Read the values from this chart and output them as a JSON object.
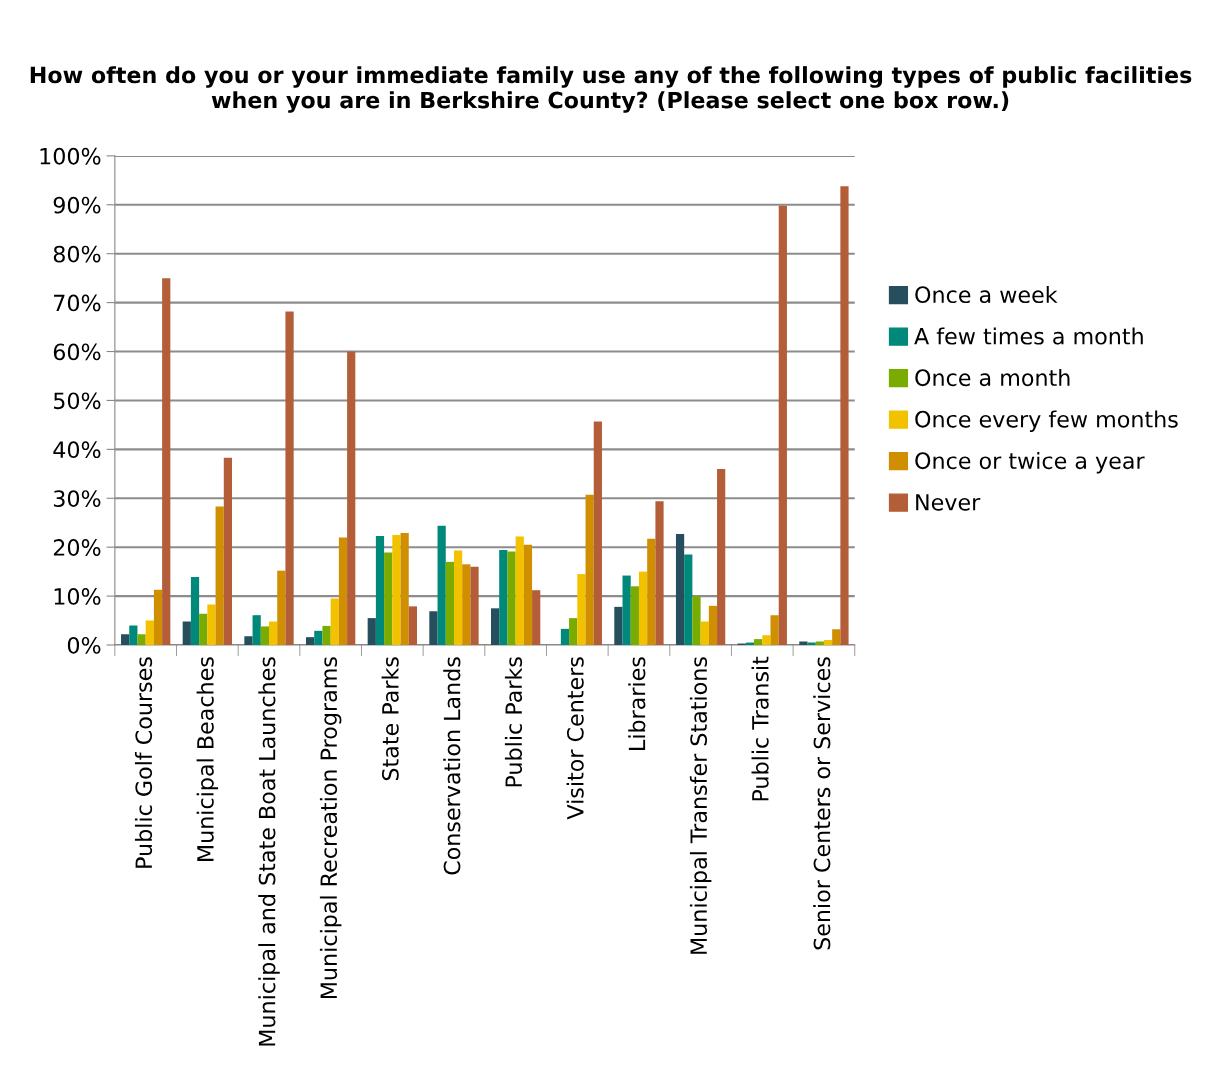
{
  "chart_data": {
    "type": "bar",
    "title": "How often do you or your immediate family use any of the following types of public facilities when you are in Berkshire County? (Please select one box row.)",
    "categories": [
      "Public Golf Courses",
      "Municipal Beaches",
      "Municipal and State Boat Launches",
      "Municipal Recreation Programs",
      "State Parks",
      "Conservation Lands",
      "Public Parks",
      "Visitor Centers",
      "Libraries",
      "Municipal Transfer Stations",
      "Public Transit",
      "Senior Centers or Services"
    ],
    "series": [
      {
        "name": "Once a week",
        "color": "#264e5c",
        "values": [
          2.2,
          4.8,
          1.8,
          1.6,
          5.5,
          6.9,
          7.5,
          0,
          7.8,
          22.7,
          0.3,
          0.7
        ]
      },
      {
        "name": "A few times a month",
        "color": "#00897b",
        "values": [
          4.0,
          13.9,
          6.1,
          2.9,
          22.3,
          24.4,
          19.4,
          3.3,
          14.2,
          18.5,
          0.5,
          0.5
        ]
      },
      {
        "name": "Once a month",
        "color": "#7aab00",
        "values": [
          2.2,
          6.4,
          3.8,
          3.9,
          18.9,
          17.0,
          19.1,
          5.5,
          12.0,
          10.0,
          1.2,
          0.7
        ]
      },
      {
        "name": "Once every few months",
        "color": "#f2c200",
        "values": [
          5.0,
          8.3,
          4.8,
          9.5,
          22.5,
          19.3,
          22.2,
          14.5,
          15.0,
          4.8,
          2.0,
          1.0
        ]
      },
      {
        "name": "Once or twice a year",
        "color": "#d08f00",
        "values": [
          11.3,
          28.3,
          15.2,
          22.0,
          22.9,
          16.5,
          20.5,
          30.7,
          21.7,
          8.0,
          6.1,
          3.2
        ]
      },
      {
        "name": "Never",
        "color": "#b35e38",
        "values": [
          75,
          38.3,
          68.2,
          60.0,
          7.9,
          16.0,
          11.2,
          45.7,
          29.4,
          36.0,
          89.8,
          93.8
        ]
      }
    ],
    "ylim": [
      0,
      100
    ],
    "yticks": [
      {
        "value": 0,
        "label": "0%"
      },
      {
        "value": 10,
        "label": "10%"
      },
      {
        "value": 20,
        "label": "20%"
      },
      {
        "value": 30,
        "label": "30%"
      },
      {
        "value": 40,
        "label": "40%"
      },
      {
        "value": 50,
        "label": "50%"
      },
      {
        "value": 60,
        "label": "60%"
      },
      {
        "value": 70,
        "label": "70%"
      },
      {
        "value": 80,
        "label": "80%"
      },
      {
        "value": 90,
        "label": "90%"
      },
      {
        "value": 100,
        "label": "100%"
      }
    ],
    "grid": "y",
    "legend": "right"
  }
}
